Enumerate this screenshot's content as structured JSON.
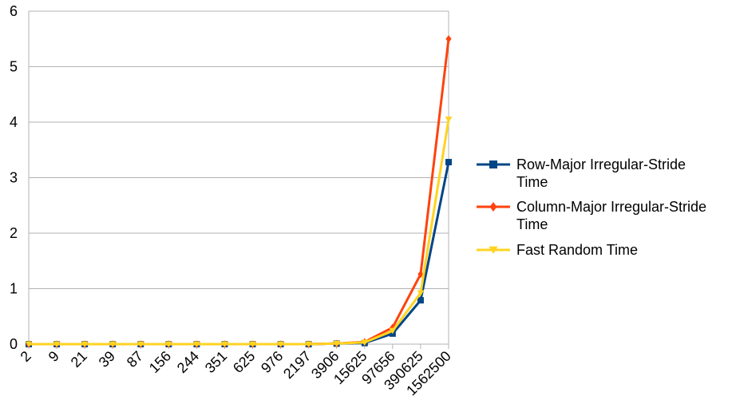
{
  "chart_data": {
    "type": "line",
    "title": "",
    "xlabel": "",
    "ylabel": "",
    "categories": [
      "2",
      "9",
      "21",
      "39",
      "87",
      "156",
      "244",
      "351",
      "625",
      "976",
      "2197",
      "3906",
      "15625",
      "97656",
      "390625",
      "1562500"
    ],
    "ylim": [
      0,
      6
    ],
    "yticks": [
      "0",
      "1",
      "2",
      "3",
      "4",
      "5",
      "6"
    ],
    "grid": true,
    "legend_position": "right",
    "series": [
      {
        "name": "Row-Major Irregular-Stride Time",
        "name_lines": [
          "Row-Major Irregular-Stride",
          "Time"
        ],
        "color": "#004586",
        "marker": "square",
        "values": [
          0,
          0,
          0,
          0,
          0,
          0,
          0,
          0,
          0,
          0,
          0,
          0.01,
          0.02,
          0.19,
          0.79,
          3.28
        ]
      },
      {
        "name": "Column-Major Irregular-Stride Time",
        "name_lines": [
          "Column-Major Irregular-Stride",
          "Time"
        ],
        "color": "#ff420e",
        "marker": "diamond",
        "values": [
          0,
          0,
          0,
          0,
          0,
          0,
          0,
          0,
          0,
          0,
          0,
          0.01,
          0.04,
          0.3,
          1.26,
          5.5
        ]
      },
      {
        "name": "Fast Random Time",
        "name_lines": [
          "Fast Random Time"
        ],
        "color": "#ffd320",
        "marker": "triangle-down",
        "values": [
          0,
          0,
          0,
          0,
          0,
          0,
          0,
          0,
          0,
          0,
          0,
          0.01,
          0.03,
          0.24,
          0.92,
          4.05
        ]
      }
    ]
  }
}
